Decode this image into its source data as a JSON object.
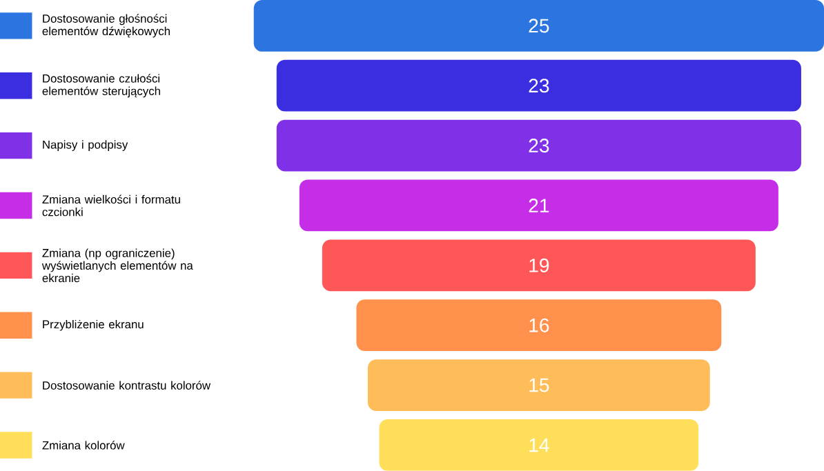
{
  "chart_data": {
    "type": "other",
    "categories": [
      "Dostosowanie głośności elementów dźwiękowych",
      "Dostosowanie czułości elementów sterujących",
      "Napisy i podpisy",
      "Zmiana wielkości i formatu czcionki",
      "Zmiana (np ograniczenie) wyświetlanych elementów na ekranie",
      "Przybliżenie ekranu",
      "Dostosowanie kontrastu kolorów",
      "Zmiana kolorów"
    ],
    "values": [
      25,
      23,
      23,
      21,
      19,
      16,
      15,
      14
    ],
    "colors": [
      "#2c75e0",
      "#3b2ee0",
      "#8030e6",
      "#c52ee6",
      "#ff5757",
      "#ff914d",
      "#ffbd59",
      "#ffde59"
    ],
    "data_labels": true
  }
}
